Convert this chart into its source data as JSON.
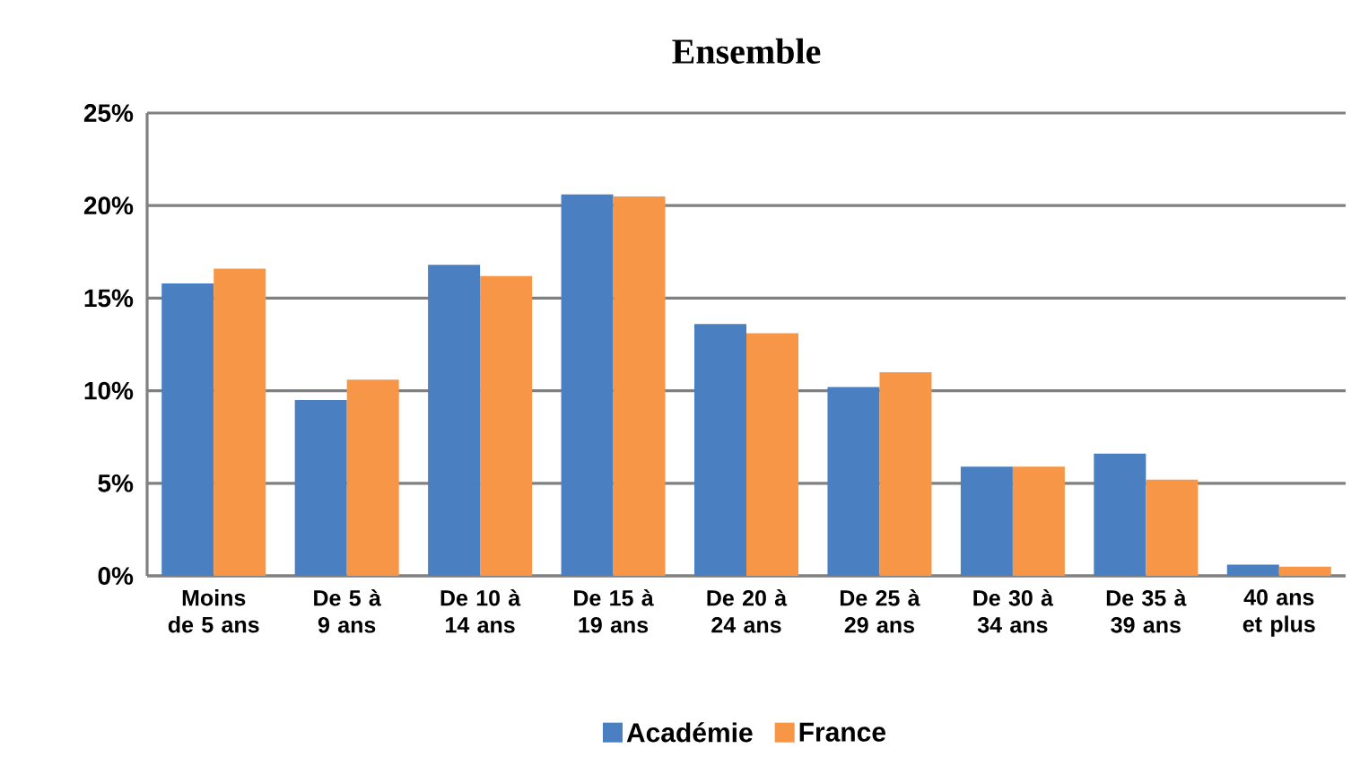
{
  "chart_data": {
    "type": "bar",
    "title": "Ensemble",
    "categories": [
      "Moins de 5 ans",
      "De 5 à 9 ans",
      "De 10 à 14 ans",
      "De 15 à 19 ans",
      "De 20 à 24 ans",
      "De 25 à 29 ans",
      "De 30 à 34 ans",
      "De 35 à 39 ans",
      "40 ans et plus"
    ],
    "series": [
      {
        "name": "Académie",
        "color": "#4a7fc1",
        "values": [
          15.8,
          9.5,
          16.8,
          20.6,
          13.6,
          10.2,
          5.9,
          6.6,
          0.6
        ]
      },
      {
        "name": "France",
        "color": "#f79646",
        "values": [
          16.6,
          10.6,
          16.2,
          20.5,
          13.1,
          11.0,
          5.9,
          5.2,
          0.5
        ]
      }
    ],
    "ylim": [
      0,
      25
    ],
    "yticks": [
      {
        "value": 0,
        "label": "0%"
      },
      {
        "value": 5,
        "label": "5%"
      },
      {
        "value": 10,
        "label": "10%"
      },
      {
        "value": 15,
        "label": "15%"
      },
      {
        "value": 20,
        "label": "20%"
      },
      {
        "value": 25,
        "label": "25%"
      }
    ],
    "grid": "y",
    "legend": "bottom"
  }
}
